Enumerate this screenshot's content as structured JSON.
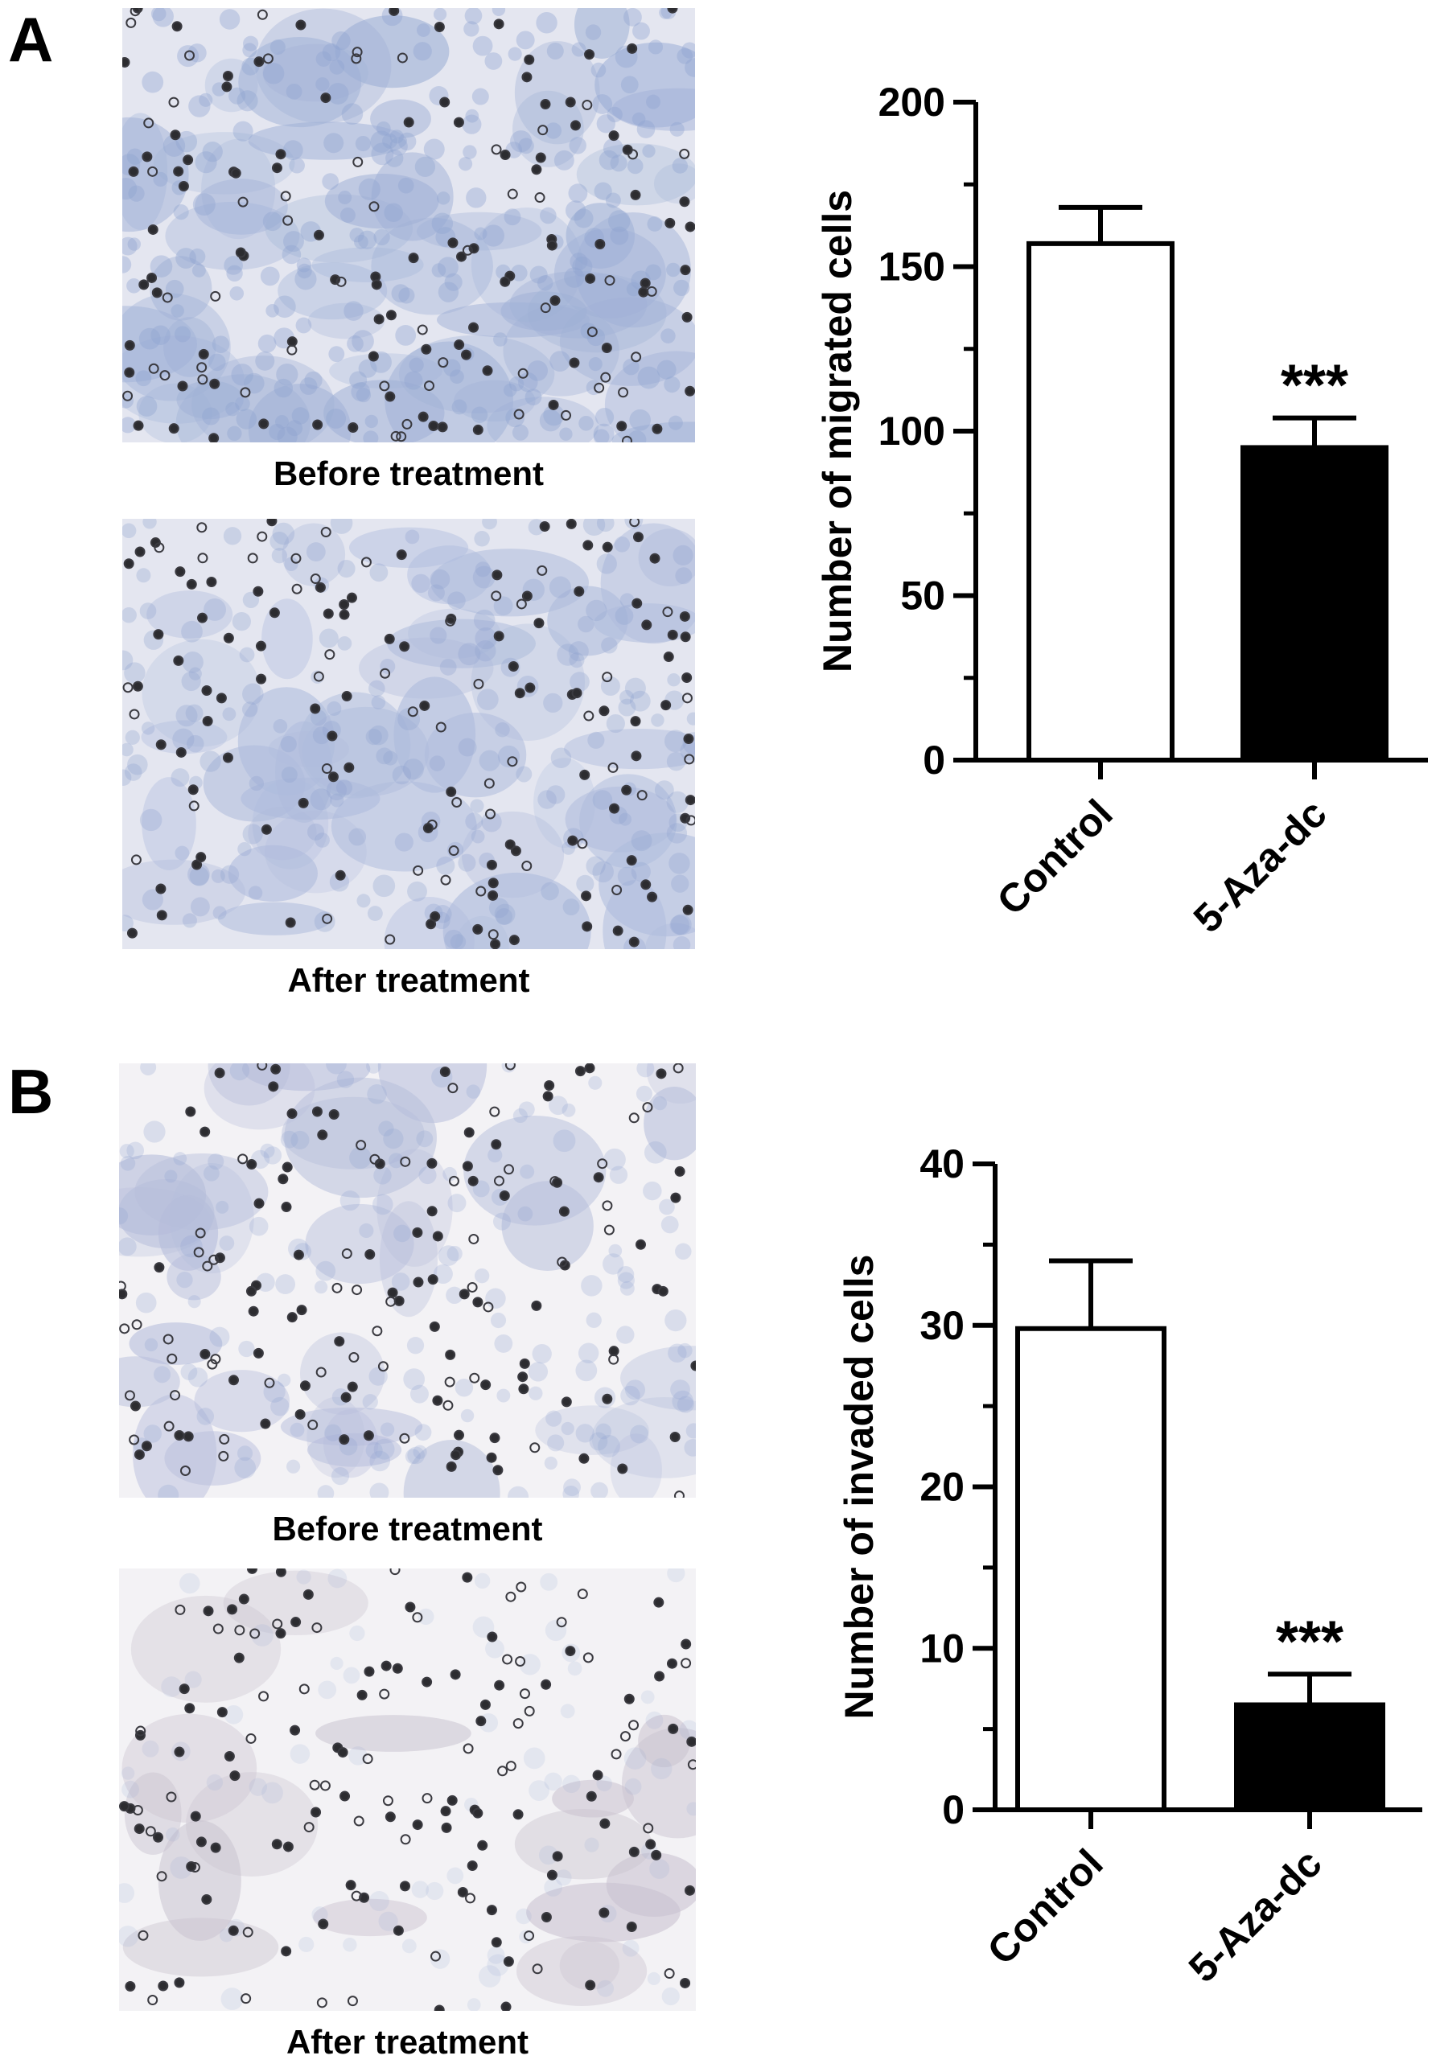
{
  "panels": [
    {
      "letter": "A",
      "images": [
        {
          "caption": "Before treatment",
          "tint": "#9fb0d6",
          "density": 0.8
        },
        {
          "caption": "After treatment",
          "tint": "#aebbdc",
          "density": 0.6
        }
      ]
    },
    {
      "letter": "B",
      "images": [
        {
          "caption": "Before treatment",
          "tint": "#b6bddb",
          "density": 0.45
        },
        {
          "caption": "After treatment",
          "tint": "#c9c2cf",
          "density": 0.15
        }
      ]
    }
  ],
  "chart_data": [
    {
      "type": "bar",
      "categories": [
        "Control",
        "5-Aza-dc"
      ],
      "values": [
        157,
        95
      ],
      "errors": [
        11,
        9
      ],
      "bar_colors": [
        "#ffffff",
        "#000000"
      ],
      "annotations": [
        "",
        "***"
      ],
      "ylabel": "Number of migrated cells",
      "ylim": [
        0,
        200
      ],
      "yticks": [
        0,
        50,
        100,
        150,
        200
      ],
      "ytick_labels": [
        "0",
        "50",
        "100",
        "150",
        "200"
      ],
      "minor_step": 25
    },
    {
      "type": "bar",
      "categories": [
        "Control",
        "5-Aza-dc"
      ],
      "values": [
        29.8,
        6.5
      ],
      "errors": [
        4.2,
        1.9
      ],
      "bar_colors": [
        "#ffffff",
        "#000000"
      ],
      "annotations": [
        "",
        "***"
      ],
      "ylabel": "Number of invaded cells",
      "ylim": [
        0,
        40
      ],
      "yticks": [
        0,
        10,
        20,
        30,
        40
      ],
      "ytick_labels": [
        "0",
        "10",
        "20",
        "30",
        "40"
      ],
      "minor_step": 5
    }
  ]
}
